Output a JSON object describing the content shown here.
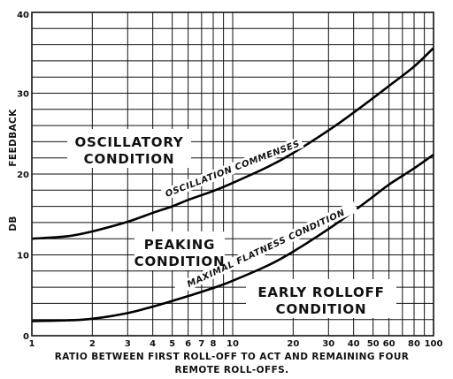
{
  "chart_data": {
    "type": "line",
    "x_scale": "log",
    "xlim": [
      1,
      100
    ],
    "ylim": [
      0,
      40
    ],
    "grid": true,
    "xlabel_line1": "RATIO  BETWEEN  FIRST  ROLL-OFF  TO  ACT  AND  REMAINING  FOUR",
    "xlabel_line2": "REMOTE  ROLL-OFFS.",
    "ylabel": "DB",
    "ylabel2": "FEEDBACK",
    "x_ticks": [
      {
        "value": 1,
        "label": "1"
      },
      {
        "value": 2,
        "label": "2"
      },
      {
        "value": 3,
        "label": "3"
      },
      {
        "value": 4,
        "label": "4"
      },
      {
        "value": 5,
        "label": "5"
      },
      {
        "value": 6,
        "label": "6"
      },
      {
        "value": 7,
        "label": "7"
      },
      {
        "value": 8,
        "label": "8"
      },
      {
        "value": 10,
        "label": "10"
      },
      {
        "value": 20,
        "label": "20"
      },
      {
        "value": 30,
        "label": "30"
      },
      {
        "value": 40,
        "label": "40"
      },
      {
        "value": 50,
        "label": "50"
      },
      {
        "value": 60,
        "label": "60"
      },
      {
        "value": 80,
        "label": "80"
      },
      {
        "value": 100,
        "label": "100"
      }
    ],
    "x_minor_grid": [
      9,
      70,
      90
    ],
    "y_ticks": [
      {
        "value": 0,
        "label": "0"
      },
      {
        "value": 10,
        "label": "10"
      },
      {
        "value": 20,
        "label": "20"
      },
      {
        "value": 30,
        "label": "30"
      },
      {
        "value": 40,
        "label": "40"
      }
    ],
    "y_minor_step": 2,
    "series": [
      {
        "name": "OSCILLATION  COMMENSES",
        "x": [
          1,
          1.5,
          2,
          3,
          4,
          5,
          6,
          8,
          10,
          15,
          20,
          30,
          40,
          50,
          60,
          80,
          100
        ],
        "y": [
          12,
          12.3,
          12.9,
          14.1,
          15.2,
          16.0,
          16.8,
          17.9,
          18.9,
          20.9,
          22.6,
          25.4,
          27.6,
          29.4,
          30.9,
          33.3,
          35.6
        ]
      },
      {
        "name": "MAXIMAL  FLATNESS  CONDITION",
        "x": [
          1,
          1.5,
          2,
          3,
          4,
          5,
          6,
          8,
          10,
          15,
          20,
          30,
          40,
          50,
          60,
          80,
          100
        ],
        "y": [
          1.8,
          1.9,
          2.1,
          2.8,
          3.6,
          4.3,
          4.9,
          5.9,
          6.8,
          8.7,
          10.4,
          13.2,
          15.4,
          17.2,
          18.7,
          20.7,
          22.4
        ]
      }
    ],
    "regions": {
      "oscillatory": [
        "OSCILLATORY",
        "CONDITION"
      ],
      "peaking": [
        "PEAKING",
        "CONDITION"
      ],
      "early_rolloff": [
        "EARLY ROLLOFF",
        "CONDITION"
      ]
    }
  }
}
